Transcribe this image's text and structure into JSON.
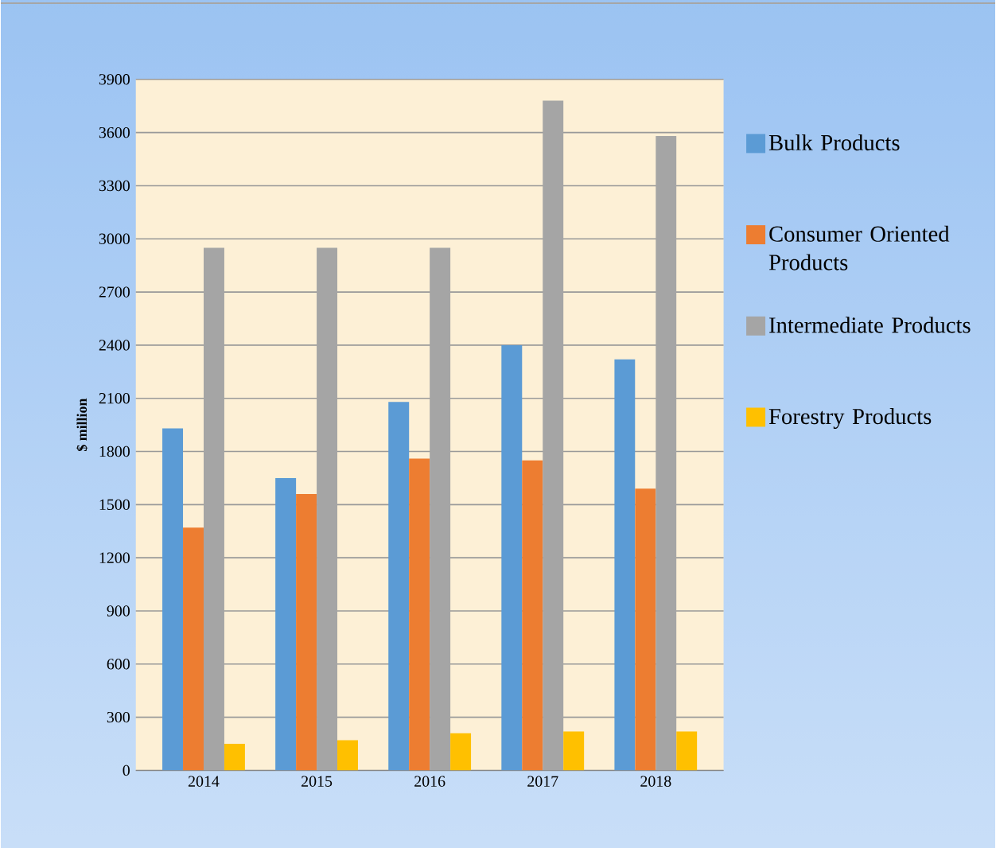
{
  "chart_data": {
    "type": "bar",
    "ylabel": "$ million",
    "categories": [
      "2014",
      "2015",
      "2016",
      "2017",
      "2018"
    ],
    "series": [
      {
        "name": "Bulk Products",
        "color": "#5b9bd5",
        "values": [
          1930,
          1650,
          2080,
          2400,
          2320
        ]
      },
      {
        "name": "Consumer Oriented Products",
        "color": "#ed7d31",
        "values": [
          1370,
          1560,
          1760,
          1750,
          1590
        ]
      },
      {
        "name": "Intermediate Products",
        "color": "#a5a5a5",
        "values": [
          2950,
          2950,
          2950,
          3780,
          3580
        ]
      },
      {
        "name": "Forestry Products",
        "color": "#ffc000",
        "values": [
          150,
          170,
          210,
          220,
          220
        ]
      }
    ],
    "ylim": [
      0,
      3900
    ],
    "yticks": [
      0,
      300,
      600,
      900,
      1200,
      1500,
      1800,
      2100,
      2400,
      2700,
      3000,
      3300,
      3600,
      3900
    ],
    "grid": "y",
    "legend": "right"
  }
}
